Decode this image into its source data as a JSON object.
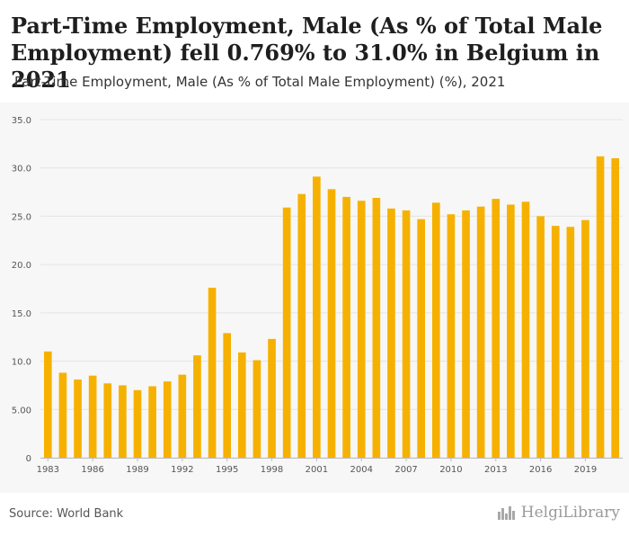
{
  "header": {
    "title": "Part-Time Employment, Male (As % of Total Male Employment) fell 0.769% to 31.0% in Belgium in 2021",
    "subtitle": "Part-Time Employment, Male (As % of Total Male Employment) (%), 2021"
  },
  "footer": {
    "source": "Source: World Bank",
    "logo_text": "HelgiLibrary"
  },
  "colors": {
    "bar": "#f6b100",
    "grid": "#e4e4e4",
    "panel": "#f7f7f7",
    "tick_text": "#555555"
  },
  "chart_data": {
    "type": "bar",
    "title": "Part-Time Employment, Male (As % of Total Male Employment) (%), 2021",
    "xlabel": "",
    "ylabel": "",
    "ylim": [
      0,
      35
    ],
    "yticks": [
      0,
      5,
      10,
      15,
      20,
      25,
      30,
      35
    ],
    "ytick_labels": [
      "0",
      "5.00",
      "10.0",
      "15.0",
      "20.0",
      "25.0",
      "30.0",
      "35.0"
    ],
    "xtick_labels": [
      "1983",
      "1986",
      "1989",
      "1992",
      "1995",
      "1998",
      "2001",
      "2004",
      "2007",
      "2010",
      "2013",
      "2016",
      "2019"
    ],
    "grid": true,
    "categories": [
      "1983",
      "1984",
      "1985",
      "1986",
      "1987",
      "1988",
      "1989",
      "1990",
      "1991",
      "1992",
      "1993",
      "1994",
      "1995",
      "1996",
      "1997",
      "1998",
      "1999",
      "2000",
      "2001",
      "2002",
      "2003",
      "2004",
      "2005",
      "2006",
      "2007",
      "2008",
      "2009",
      "2010",
      "2011",
      "2012",
      "2013",
      "2014",
      "2015",
      "2016",
      "2017",
      "2018",
      "2019",
      "2020",
      "2021"
    ],
    "values": [
      11.0,
      8.8,
      8.1,
      8.5,
      7.7,
      7.5,
      7.0,
      7.4,
      7.9,
      8.6,
      10.6,
      17.6,
      12.9,
      10.9,
      10.1,
      12.3,
      25.9,
      27.3,
      29.1,
      27.8,
      27.0,
      26.6,
      26.9,
      25.8,
      25.6,
      24.7,
      26.4,
      25.2,
      25.6,
      26.0,
      26.8,
      26.2,
      26.5,
      25.0,
      24.0,
      23.9,
      24.6,
      31.2,
      31.0
    ]
  }
}
